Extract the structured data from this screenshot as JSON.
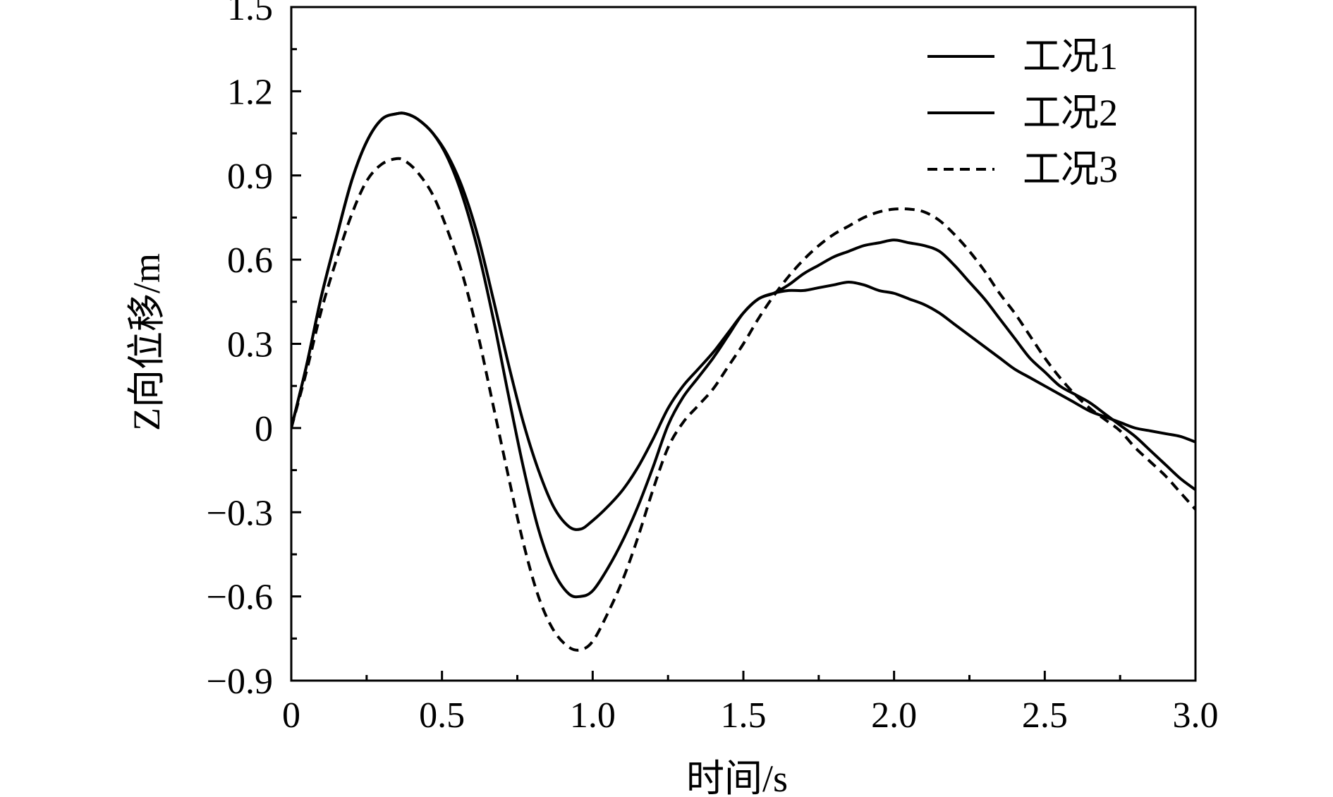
{
  "chart_data": {
    "type": "line",
    "title": "",
    "xlabel": "时间/s",
    "ylabel": "Z向位移/m",
    "xlim": [
      0,
      3.0
    ],
    "ylim": [
      -0.9,
      1.5
    ],
    "x_ticks": [
      0,
      0.5,
      1.0,
      1.5,
      2.0,
      2.5,
      3.0
    ],
    "x_tick_labels": [
      "0",
      "0.5",
      "1.0",
      "1.5",
      "2.0",
      "2.5",
      "3.0"
    ],
    "y_ticks": [
      -0.9,
      -0.6,
      -0.3,
      0,
      0.3,
      0.6,
      0.9,
      1.2,
      1.5
    ],
    "y_tick_labels": [
      "−0.9",
      "−0.6",
      "−0.3",
      "0",
      "0.3",
      "0.6",
      "0.9",
      "1.2",
      "1.5"
    ],
    "grid": false,
    "legend_position": "top-right",
    "series": [
      {
        "name": "工况1",
        "style": "solid",
        "color": "#000000",
        "x": [
          0,
          0.05,
          0.1,
          0.15,
          0.2,
          0.25,
          0.3,
          0.35,
          0.38,
          0.42,
          0.47,
          0.52,
          0.57,
          0.62,
          0.67,
          0.72,
          0.77,
          0.82,
          0.87,
          0.92,
          0.96,
          1.0,
          1.05,
          1.1,
          1.15,
          1.2,
          1.25,
          1.3,
          1.35,
          1.4,
          1.45,
          1.5,
          1.55,
          1.6,
          1.65,
          1.7,
          1.75,
          1.8,
          1.85,
          1.9,
          1.95,
          2.0,
          2.05,
          2.1,
          2.15,
          2.2,
          2.25,
          2.3,
          2.35,
          2.4,
          2.45,
          2.5,
          2.55,
          2.6,
          2.65,
          2.7,
          2.75,
          2.8,
          2.85,
          2.9,
          2.95,
          3.0
        ],
        "y": [
          0,
          0.22,
          0.47,
          0.68,
          0.88,
          1.02,
          1.1,
          1.12,
          1.12,
          1.1,
          1.05,
          0.97,
          0.85,
          0.68,
          0.46,
          0.23,
          0.02,
          -0.15,
          -0.28,
          -0.35,
          -0.36,
          -0.33,
          -0.28,
          -0.22,
          -0.14,
          -0.04,
          0.07,
          0.15,
          0.21,
          0.27,
          0.34,
          0.41,
          0.46,
          0.48,
          0.49,
          0.49,
          0.5,
          0.51,
          0.52,
          0.51,
          0.49,
          0.48,
          0.46,
          0.44,
          0.41,
          0.37,
          0.33,
          0.29,
          0.25,
          0.21,
          0.18,
          0.15,
          0.12,
          0.09,
          0.06,
          0.04,
          0.02,
          0.0,
          -0.01,
          -0.02,
          -0.03,
          -0.05
        ]
      },
      {
        "name": "工况2",
        "style": "solid",
        "color": "#000000",
        "x": [
          0,
          0.05,
          0.1,
          0.15,
          0.2,
          0.25,
          0.3,
          0.35,
          0.38,
          0.42,
          0.47,
          0.52,
          0.57,
          0.62,
          0.67,
          0.72,
          0.77,
          0.82,
          0.87,
          0.92,
          0.96,
          1.0,
          1.05,
          1.1,
          1.15,
          1.2,
          1.25,
          1.3,
          1.35,
          1.4,
          1.45,
          1.5,
          1.55,
          1.6,
          1.65,
          1.7,
          1.75,
          1.8,
          1.85,
          1.9,
          1.95,
          2.0,
          2.05,
          2.1,
          2.15,
          2.2,
          2.25,
          2.3,
          2.35,
          2.4,
          2.45,
          2.5,
          2.55,
          2.6,
          2.65,
          2.7,
          2.75,
          2.8,
          2.85,
          2.9,
          2.95,
          3.0
        ],
        "y": [
          0,
          0.22,
          0.47,
          0.68,
          0.88,
          1.02,
          1.1,
          1.12,
          1.12,
          1.1,
          1.05,
          0.96,
          0.82,
          0.63,
          0.39,
          0.12,
          -0.14,
          -0.36,
          -0.51,
          -0.59,
          -0.6,
          -0.58,
          -0.5,
          -0.4,
          -0.28,
          -0.14,
          0.01,
          0.11,
          0.18,
          0.25,
          0.33,
          0.41,
          0.46,
          0.48,
          0.51,
          0.55,
          0.58,
          0.61,
          0.63,
          0.65,
          0.66,
          0.67,
          0.66,
          0.65,
          0.63,
          0.58,
          0.52,
          0.46,
          0.39,
          0.32,
          0.25,
          0.2,
          0.15,
          0.12,
          0.09,
          0.05,
          0.01,
          -0.03,
          -0.08,
          -0.13,
          -0.18,
          -0.22
        ]
      },
      {
        "name": "工况3",
        "style": "dashed",
        "color": "#000000",
        "x": [
          0,
          0.05,
          0.1,
          0.15,
          0.2,
          0.25,
          0.3,
          0.35,
          0.38,
          0.42,
          0.47,
          0.52,
          0.57,
          0.62,
          0.67,
          0.72,
          0.77,
          0.82,
          0.87,
          0.92,
          0.96,
          1.0,
          1.05,
          1.1,
          1.15,
          1.2,
          1.25,
          1.3,
          1.35,
          1.4,
          1.45,
          1.5,
          1.55,
          1.6,
          1.65,
          1.7,
          1.75,
          1.8,
          1.85,
          1.9,
          1.95,
          2.0,
          2.05,
          2.1,
          2.15,
          2.2,
          2.25,
          2.3,
          2.35,
          2.4,
          2.45,
          2.5,
          2.55,
          2.6,
          2.65,
          2.7,
          2.75,
          2.8,
          2.85,
          2.9,
          2.95,
          3.0
        ],
        "y": [
          0,
          0.2,
          0.42,
          0.6,
          0.76,
          0.88,
          0.94,
          0.96,
          0.95,
          0.91,
          0.83,
          0.7,
          0.54,
          0.33,
          0.08,
          -0.17,
          -0.41,
          -0.6,
          -0.72,
          -0.78,
          -0.79,
          -0.76,
          -0.66,
          -0.54,
          -0.39,
          -0.22,
          -0.07,
          0.02,
          0.08,
          0.14,
          0.22,
          0.3,
          0.39,
          0.47,
          0.54,
          0.6,
          0.65,
          0.69,
          0.72,
          0.75,
          0.77,
          0.78,
          0.78,
          0.77,
          0.74,
          0.69,
          0.63,
          0.56,
          0.48,
          0.41,
          0.33,
          0.25,
          0.18,
          0.12,
          0.07,
          0.03,
          -0.01,
          -0.07,
          -0.12,
          -0.17,
          -0.23,
          -0.29
        ]
      }
    ]
  }
}
